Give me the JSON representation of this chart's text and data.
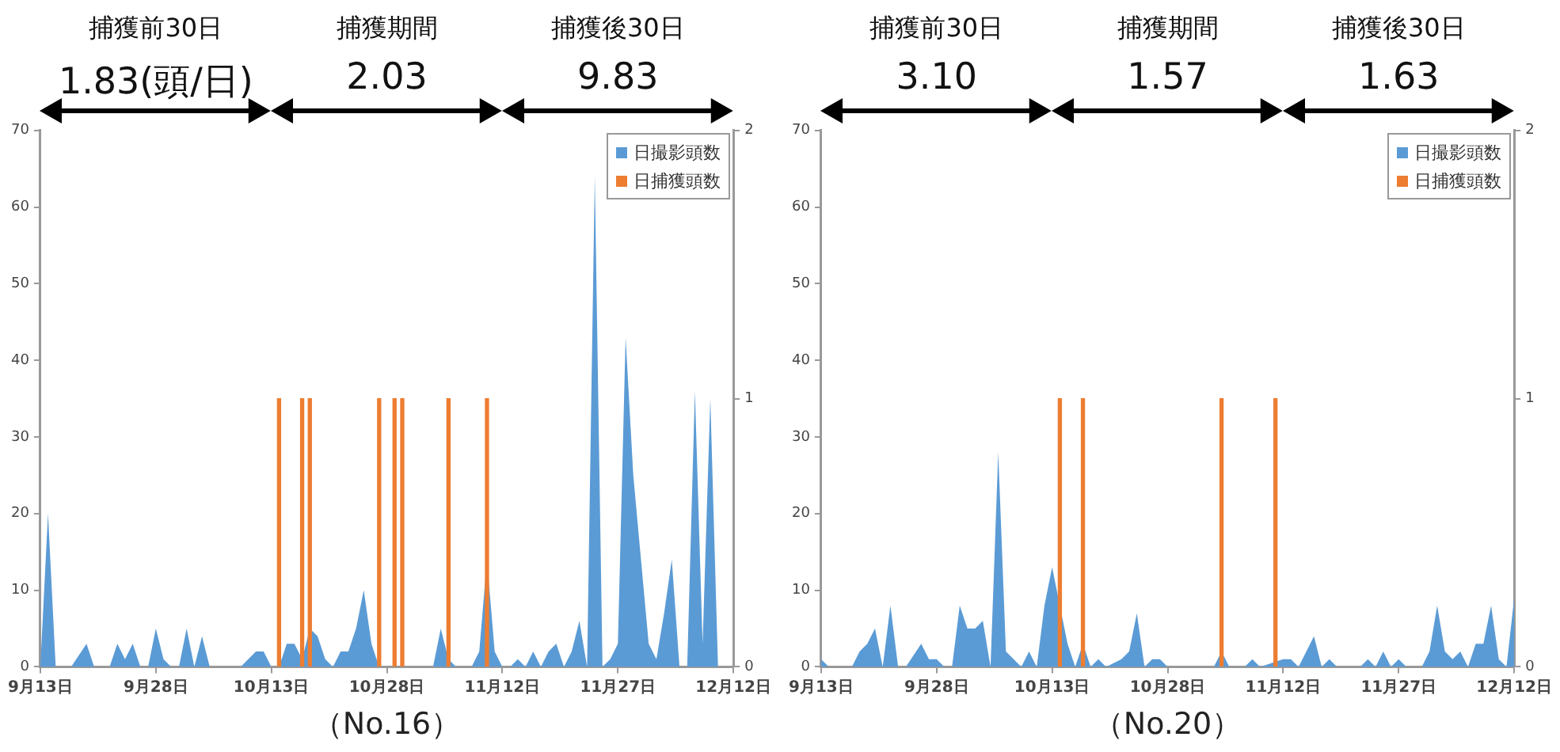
{
  "chart_data": [
    {
      "type": "area",
      "xlabel": "（No.16）",
      "annotations": [
        "捕獲前30日",
        "捕獲期間",
        "捕獲後30日",
        "1.83(頭/日)",
        "2.03",
        "9.83"
      ],
      "xlim": [
        "--09-13",
        "--12-12"
      ],
      "xticks": [
        {
          "value": "--09-13",
          "label": "9月13日"
        },
        {
          "value": "--09-28",
          "label": "9月28日"
        },
        {
          "value": "--10-13",
          "label": "10月13日"
        },
        {
          "value": "--10-28",
          "label": "10月28日"
        },
        {
          "value": "--11-12",
          "label": "11月12日"
        },
        {
          "value": "--11-27",
          "label": "11月27日"
        },
        {
          "value": "--12-12",
          "label": "12月12日"
        }
      ],
      "ylim": [
        0,
        70
      ],
      "yticks": [
        0,
        10,
        20,
        30,
        40,
        50,
        60,
        70
      ],
      "y2lim": [
        0,
        2
      ],
      "y2ticks": [
        0,
        1,
        2
      ],
      "legend": "top right",
      "series": [
        {
          "name": "日撮影頭数",
          "color": "#5b9bd5",
          "x": [
            "--09-13",
            "--09-14",
            "--09-15",
            "--09-17",
            "--09-19",
            "--09-20",
            "--09-22",
            "--09-23",
            "--09-24",
            "--09-25",
            "--09-26",
            "--09-27",
            "--09-28",
            "--09-29",
            "--09-30",
            "--10-01",
            "--10-02",
            "--10-03",
            "--10-04",
            "--10-05",
            "--10-09",
            "--10-11",
            "--10-12",
            "--10-13",
            "--10-14",
            "--10-15",
            "--10-16",
            "--10-17",
            "--10-18",
            "--10-19",
            "--10-20",
            "--10-21",
            "--10-22",
            "--10-23",
            "--10-24",
            "--10-25",
            "--10-26",
            "--10-27",
            "--11-03",
            "--11-04",
            "--11-05",
            "--11-06",
            "--11-08",
            "--11-09",
            "--11-10",
            "--11-11",
            "--11-12",
            "--11-13",
            "--11-14",
            "--11-15",
            "--11-16",
            "--11-17",
            "--11-18",
            "--11-19",
            "--11-20",
            "--11-21",
            "--11-22",
            "--11-23",
            "--11-24",
            "--11-25",
            "--11-26",
            "--11-27",
            "--11-28",
            "--11-29",
            "--11-30",
            "--12-01",
            "--12-02",
            "--12-03",
            "--12-04",
            "--12-05",
            "--12-06",
            "--12-07",
            "--12-08",
            "--12-09",
            "--12-10",
            "--12-12"
          ],
          "values": [
            0,
            20,
            0,
            0,
            3,
            0,
            0,
            3,
            1,
            3,
            0,
            0,
            5,
            1,
            0,
            0,
            5,
            0,
            4,
            0,
            0,
            2,
            2,
            0,
            0,
            3,
            3,
            1,
            5,
            4,
            1,
            0,
            2,
            2,
            5,
            10,
            3,
            0,
            0,
            5,
            1,
            0,
            0,
            2,
            14,
            2,
            0,
            0,
            1,
            0,
            2,
            0,
            2,
            3,
            0,
            2,
            6,
            0,
            64,
            0,
            1,
            3,
            43,
            25,
            14,
            3,
            1,
            7,
            14,
            0,
            0,
            36,
            3,
            35,
            0,
            0
          ]
        },
        {
          "name": "日捕獲頭数",
          "color": "#ed7d31",
          "type": "bar",
          "axis": "y2",
          "x": [
            "--10-14",
            "--10-17",
            "--10-18",
            "--10-27",
            "--10-29",
            "--10-30",
            "--11-05",
            "--11-10"
          ],
          "values": [
            1,
            1,
            1,
            1,
            1,
            1,
            1,
            1
          ]
        }
      ]
    },
    {
      "type": "area",
      "xlabel": "（No.20）",
      "annotations": [
        "捕獲前30日",
        "捕獲期間",
        "捕獲後30日",
        "3.10",
        "1.57",
        "1.63"
      ],
      "xlim": [
        "--09-13",
        "--12-12"
      ],
      "xticks": [
        {
          "value": "--09-13",
          "label": "9月13日"
        },
        {
          "value": "--09-28",
          "label": "9月28日"
        },
        {
          "value": "--10-13",
          "label": "10月13日"
        },
        {
          "value": "--10-28",
          "label": "10月28日"
        },
        {
          "value": "--11-12",
          "label": "11月12日"
        },
        {
          "value": "--11-27",
          "label": "11月27日"
        },
        {
          "value": "--12-12",
          "label": "12月12日"
        }
      ],
      "ylim": [
        0,
        70
      ],
      "yticks": [
        0,
        10,
        20,
        30,
        40,
        50,
        60,
        70
      ],
      "y2lim": [
        0,
        2
      ],
      "y2ticks": [
        0,
        1,
        2
      ],
      "legend": "top right",
      "series": [
        {
          "name": "日撮影頭数",
          "color": "#5b9bd5",
          "x": [
            "--09-13",
            "--09-14",
            "--09-17",
            "--09-18",
            "--09-19",
            "--09-20",
            "--09-21",
            "--09-22",
            "--09-23",
            "--09-24",
            "--09-26",
            "--09-27",
            "--09-28",
            "--09-29",
            "--09-30",
            "--10-01",
            "--10-02",
            "--10-03",
            "--10-04",
            "--10-05",
            "--10-06",
            "--10-07",
            "--10-08",
            "--10-09",
            "--10-10",
            "--10-11",
            "--10-12",
            "--10-13",
            "--10-14",
            "--10-15",
            "--10-16",
            "--10-17",
            "--10-18",
            "--10-19",
            "--10-20",
            "--10-22",
            "--10-23",
            "--10-24",
            "--10-25",
            "--10-26",
            "--10-27",
            "--10-28",
            "--11-03",
            "--11-04",
            "--11-05",
            "--11-07",
            "--11-08",
            "--11-09",
            "--11-12",
            "--11-13",
            "--11-14",
            "--11-16",
            "--11-17",
            "--11-18",
            "--11-19",
            "--11-22",
            "--11-23",
            "--11-24",
            "--11-25",
            "--11-26",
            "--11-27",
            "--11-28",
            "--11-30",
            "--12-01",
            "--12-02",
            "--12-03",
            "--12-04",
            "--12-05",
            "--12-06",
            "--12-07",
            "--12-08",
            "--12-09",
            "--12-10",
            "--12-11",
            "--12-12"
          ],
          "values": [
            1,
            0,
            0,
            2,
            3,
            5,
            0,
            8,
            0,
            0,
            3,
            1,
            1,
            0,
            0,
            8,
            5,
            5,
            6,
            0,
            28,
            2,
            1,
            0,
            2,
            0,
            8,
            13,
            8,
            3,
            0,
            3,
            0,
            1,
            0,
            1,
            2,
            7,
            0,
            1,
            1,
            0,
            0,
            2,
            0,
            0,
            1,
            0,
            1,
            1,
            0,
            4,
            0,
            1,
            0,
            0,
            1,
            0,
            2,
            0,
            1,
            0,
            0,
            2,
            8,
            2,
            1,
            2,
            0,
            3,
            3,
            8,
            1,
            0,
            9
          ]
        },
        {
          "name": "日捕獲頭数",
          "color": "#ed7d31",
          "type": "bar",
          "axis": "y2",
          "x": [
            "--10-14",
            "--10-17",
            "--11-04",
            "--11-11"
          ],
          "values": [
            1,
            1,
            1,
            1
          ]
        }
      ]
    }
  ]
}
